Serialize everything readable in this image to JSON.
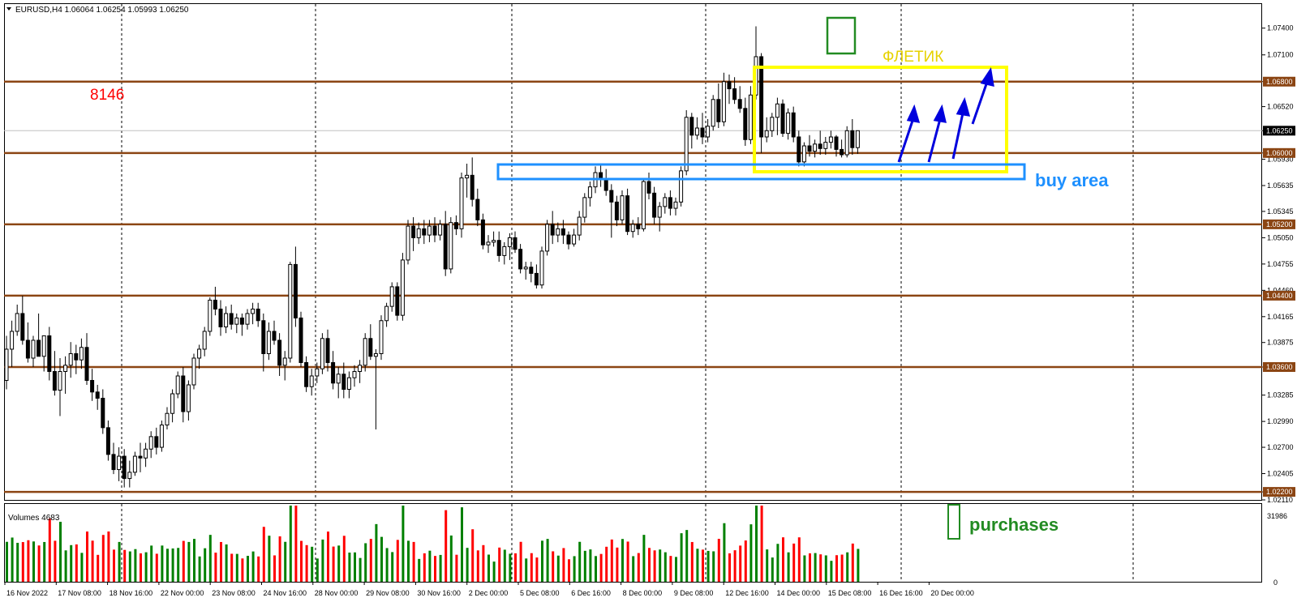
{
  "header": {
    "symbol_line": "EURUSD,H4  1.06064 1.06254 1.05993 1.06250",
    "volumes_label": "Volumes 4683"
  },
  "annotations": {
    "number_label": "8146",
    "flag_label": "ФЛЕТИК",
    "buy_area_label": "buy area",
    "purchases_label": "purchases"
  },
  "colors": {
    "up_candle": "#ffffff",
    "down_candle": "#000000",
    "level_line": "#8b4513",
    "flag_box": "#ffff00",
    "buy_box": "#1e90ff",
    "signal_box": "#228b22",
    "arrow": "#0000dd",
    "vol_up": "#008000",
    "vol_down": "#ff0000",
    "number_label": "#ff0000",
    "flag_label": "#e6d200",
    "buy_area_label": "#1e90ff",
    "purchases_label": "#228b22"
  },
  "chart_data": {
    "type": "candlestick",
    "timeframe": "H4",
    "ylim": [
      1.0211,
      1.0767
    ],
    "y_ticks": [
      "1.07400",
      "1.07100",
      "1.06800",
      "1.06520",
      "1.06250",
      "1.06000",
      "1.05930",
      "1.05635",
      "1.05345",
      "1.05050",
      "1.04755",
      "1.04460",
      "1.04165",
      "1.03875",
      "1.03600",
      "1.03285",
      "1.02990",
      "1.02700",
      "1.02405",
      "1.02200",
      "1.02110"
    ],
    "x_ticks": [
      "16 Nov 2022",
      "17 Nov 08:00",
      "18 Nov 16:00",
      "22 Nov 00:00",
      "23 Nov 08:00",
      "24 Nov 16:00",
      "28 Nov 00:00",
      "29 Nov 08:00",
      "30 Nov 16:00",
      "2 Dec 00:00",
      "5 Dec 08:00",
      "6 Dec 16:00",
      "8 Dec 00:00",
      "9 Dec 08:00",
      "12 Dec 16:00",
      "14 Dec 00:00",
      "15 Dec 08:00",
      "16 Dec 16:00",
      "20 Dec 00:00"
    ],
    "levels": [
      {
        "price": 1.068,
        "label": "1.06800"
      },
      {
        "price": 1.06,
        "label": "1.06000"
      },
      {
        "price": 1.052,
        "label": "1.05200"
      },
      {
        "price": 1.044,
        "label": "1.04400"
      },
      {
        "price": 1.036,
        "label": "1.03600"
      },
      {
        "price": 1.022,
        "label": "1.02200"
      }
    ],
    "current_price": {
      "price": 1.0625,
      "label": "1.06250"
    },
    "candles_ohlc": [
      [
        1.0345,
        1.0395,
        1.0335,
        1.038
      ],
      [
        1.038,
        1.0412,
        1.036,
        1.04
      ],
      [
        1.04,
        1.043,
        1.0395,
        1.042
      ],
      [
        1.042,
        1.044,
        1.0385,
        1.039
      ],
      [
        1.039,
        1.041,
        1.0365,
        1.037
      ],
      [
        1.037,
        1.0395,
        1.036,
        1.039
      ],
      [
        1.039,
        1.042,
        1.0375,
        1.0372
      ],
      [
        1.0372,
        1.0395,
        1.0355,
        1.0395
      ],
      [
        1.0395,
        1.0405,
        1.0345,
        1.0355
      ],
      [
        1.0355,
        1.0378,
        1.0328,
        1.0334
      ],
      [
        1.0334,
        1.037,
        1.0305,
        1.0355
      ],
      [
        1.0355,
        1.0372,
        1.033,
        1.0362
      ],
      [
        1.0362,
        1.0388,
        1.0348,
        1.0375
      ],
      [
        1.0375,
        1.0385,
        1.0352,
        1.0368
      ],
      [
        1.0368,
        1.0392,
        1.0358,
        1.0382
      ],
      [
        1.0382,
        1.0398,
        1.034,
        1.0345
      ],
      [
        1.0345,
        1.0358,
        1.0322,
        1.0332
      ],
      [
        1.0332,
        1.034,
        1.0312,
        1.0325
      ],
      [
        1.0325,
        1.0335,
        1.0285,
        1.0292
      ],
      [
        1.0292,
        1.03,
        1.0255,
        1.0262
      ],
      [
        1.0262,
        1.0275,
        1.024,
        1.0245
      ],
      [
        1.0245,
        1.027,
        1.0232,
        1.026
      ],
      [
        1.026,
        1.0268,
        1.0225,
        1.0235
      ],
      [
        1.0235,
        1.0255,
        1.0225,
        1.0242
      ],
      [
        1.0242,
        1.0265,
        1.0238,
        1.026
      ],
      [
        1.026,
        1.0275,
        1.0242,
        1.0258
      ],
      [
        1.0258,
        1.0275,
        1.0248,
        1.0268
      ],
      [
        1.0268,
        1.0288,
        1.0258,
        1.0282
      ],
      [
        1.0282,
        1.0292,
        1.0262,
        1.027
      ],
      [
        1.027,
        1.03,
        1.0265,
        1.0295
      ],
      [
        1.0295,
        1.0315,
        1.029,
        1.0308
      ],
      [
        1.0308,
        1.0335,
        1.0298,
        1.033
      ],
      [
        1.033,
        1.0355,
        1.0325,
        1.035
      ],
      [
        1.035,
        1.036,
        1.0298,
        1.031
      ],
      [
        1.031,
        1.0345,
        1.03,
        1.034
      ],
      [
        1.034,
        1.0375,
        1.0335,
        1.037
      ],
      [
        1.037,
        1.0385,
        1.0358,
        1.038
      ],
      [
        1.038,
        1.0405,
        1.0372,
        1.04
      ],
      [
        1.04,
        1.0438,
        1.0395,
        1.0435
      ],
      [
        1.0435,
        1.045,
        1.0418,
        1.0425
      ],
      [
        1.0425,
        1.0435,
        1.0395,
        1.0405
      ],
      [
        1.0405,
        1.0428,
        1.0398,
        1.042
      ],
      [
        1.042,
        1.043,
        1.0402,
        1.0408
      ],
      [
        1.0408,
        1.042,
        1.0398,
        1.0415
      ],
      [
        1.0415,
        1.042,
        1.0395,
        1.0408
      ],
      [
        1.0408,
        1.0425,
        1.0402,
        1.042
      ],
      [
        1.042,
        1.0432,
        1.0408,
        1.0425
      ],
      [
        1.0425,
        1.0432,
        1.0405,
        1.0412
      ],
      [
        1.0412,
        1.042,
        1.0355,
        1.0375
      ],
      [
        1.0375,
        1.041,
        1.0368,
        1.04
      ],
      [
        1.04,
        1.0412,
        1.0385,
        1.039
      ],
      [
        1.039,
        1.0398,
        1.035,
        1.0362
      ],
      [
        1.0362,
        1.0378,
        1.0345,
        1.037
      ],
      [
        1.037,
        1.0478,
        1.0365,
        1.0475
      ],
      [
        1.0475,
        1.0495,
        1.0405,
        1.0415
      ],
      [
        1.0415,
        1.0422,
        1.036,
        1.0365
      ],
      [
        1.0365,
        1.0372,
        1.0332,
        1.0338
      ],
      [
        1.0338,
        1.0358,
        1.0328,
        1.035
      ],
      [
        1.035,
        1.0365,
        1.0342,
        1.0358
      ],
      [
        1.0358,
        1.0398,
        1.0352,
        1.0392
      ],
      [
        1.0392,
        1.0402,
        1.0355,
        1.0365
      ],
      [
        1.0365,
        1.0378,
        1.0335,
        1.0342
      ],
      [
        1.0342,
        1.036,
        1.0325,
        1.0352
      ],
      [
        1.0352,
        1.0365,
        1.0325,
        1.0335
      ],
      [
        1.0335,
        1.0355,
        1.0325,
        1.0348
      ],
      [
        1.0348,
        1.0362,
        1.0338,
        1.0355
      ],
      [
        1.0355,
        1.0368,
        1.0342,
        1.0362
      ],
      [
        1.0362,
        1.0398,
        1.0355,
        1.0392
      ],
      [
        1.0392,
        1.0408,
        1.0368,
        1.0372
      ],
      [
        1.0372,
        1.038,
        1.029,
        1.0375
      ],
      [
        1.0375,
        1.0418,
        1.0368,
        1.0412
      ],
      [
        1.0412,
        1.0432,
        1.0405,
        1.0428
      ],
      [
        1.0428,
        1.0455,
        1.0422,
        1.045
      ],
      [
        1.045,
        1.0455,
        1.0412,
        1.0418
      ],
      [
        1.0418,
        1.0488,
        1.0412,
        1.048
      ],
      [
        1.048,
        1.0525,
        1.0475,
        1.0518
      ],
      [
        1.0518,
        1.0528,
        1.049,
        1.0505
      ],
      [
        1.0505,
        1.0522,
        1.0498,
        1.0515
      ],
      [
        1.0515,
        1.0525,
        1.0498,
        1.0508
      ],
      [
        1.0508,
        1.0525,
        1.05,
        1.0518
      ],
      [
        1.0518,
        1.0528,
        1.05,
        1.0508
      ],
      [
        1.0508,
        1.0525,
        1.0502,
        1.052
      ],
      [
        1.052,
        1.0535,
        1.0462,
        1.047
      ],
      [
        1.047,
        1.0528,
        1.0465,
        1.0522
      ],
      [
        1.0522,
        1.053,
        1.0508,
        1.0515
      ],
      [
        1.0515,
        1.0578,
        1.0505,
        1.0572
      ],
      [
        1.0572,
        1.0588,
        1.055,
        1.0575
      ],
      [
        1.0575,
        1.0595,
        1.054,
        1.0548
      ],
      [
        1.0548,
        1.056,
        1.0518,
        1.0525
      ],
      [
        1.0525,
        1.0532,
        1.0492,
        1.0497
      ],
      [
        1.0497,
        1.0508,
        1.0488,
        1.05
      ],
      [
        1.05,
        1.0512,
        1.0495,
        1.0502
      ],
      [
        1.0502,
        1.0512,
        1.0478,
        1.0485
      ],
      [
        1.0485,
        1.05,
        1.0475,
        1.0495
      ],
      [
        1.0495,
        1.051,
        1.048,
        1.0505
      ],
      [
        1.0505,
        1.0512,
        1.0488,
        1.0492
      ],
      [
        1.0492,
        1.0498,
        1.0465,
        1.047
      ],
      [
        1.047,
        1.0478,
        1.0458,
        1.0472
      ],
      [
        1.0472,
        1.0478,
        1.0455,
        1.0465
      ],
      [
        1.0465,
        1.0475,
        1.0448,
        1.0452
      ],
      [
        1.0452,
        1.0495,
        1.0448,
        1.049
      ],
      [
        1.049,
        1.0525,
        1.0485,
        1.052
      ],
      [
        1.052,
        1.0535,
        1.0498,
        1.0508
      ],
      [
        1.0508,
        1.0522,
        1.05,
        1.0515
      ],
      [
        1.0515,
        1.0525,
        1.0498,
        1.0508
      ],
      [
        1.0508,
        1.0512,
        1.0492,
        1.0498
      ],
      [
        1.0498,
        1.0515,
        1.0495,
        1.0508
      ],
      [
        1.0508,
        1.0535,
        1.0502,
        1.0528
      ],
      [
        1.0528,
        1.0555,
        1.0522,
        1.055
      ],
      [
        1.055,
        1.0568,
        1.054,
        1.0562
      ],
      [
        1.0562,
        1.0585,
        1.0555,
        1.0578
      ],
      [
        1.0578,
        1.0588,
        1.0562,
        1.057
      ],
      [
        1.057,
        1.0582,
        1.0552,
        1.0558
      ],
      [
        1.0558,
        1.0565,
        1.0505,
        1.0545
      ],
      [
        1.0545,
        1.0552,
        1.0518,
        1.0525
      ],
      [
        1.0525,
        1.0558,
        1.052,
        1.0552
      ],
      [
        1.0552,
        1.056,
        1.0508,
        1.0512
      ],
      [
        1.0512,
        1.0525,
        1.0505,
        1.052
      ],
      [
        1.052,
        1.0528,
        1.0508,
        1.0515
      ],
      [
        1.0515,
        1.0572,
        1.0512,
        1.0568
      ],
      [
        1.0568,
        1.0578,
        1.0548,
        1.0555
      ],
      [
        1.0555,
        1.0562,
        1.052,
        1.0528
      ],
      [
        1.0528,
        1.0545,
        1.0512,
        1.054
      ],
      [
        1.054,
        1.0555,
        1.0532,
        1.055
      ],
      [
        1.055,
        1.0558,
        1.053,
        1.0538
      ],
      [
        1.0538,
        1.055,
        1.053,
        1.0545
      ],
      [
        1.0545,
        1.0585,
        1.054,
        1.058
      ],
      [
        1.058,
        1.0648,
        1.0575,
        1.064
      ],
      [
        1.064,
        1.0645,
        1.0605,
        1.062
      ],
      [
        1.062,
        1.064,
        1.0615,
        1.0628
      ],
      [
        1.0628,
        1.0645,
        1.061,
        1.0618
      ],
      [
        1.0618,
        1.0638,
        1.0612,
        1.063
      ],
      [
        1.063,
        1.0665,
        1.0625,
        1.066
      ],
      [
        1.066,
        1.0678,
        1.0628,
        1.0635
      ],
      [
        1.0635,
        1.069,
        1.063,
        1.068
      ],
      [
        1.068,
        1.0688,
        1.0655,
        1.0672
      ],
      [
        1.0672,
        1.0685,
        1.0655,
        1.066
      ],
      [
        1.066,
        1.0675,
        1.0645,
        1.065
      ],
      [
        1.065,
        1.0662,
        1.0608,
        1.0615
      ],
      [
        1.0615,
        1.0675,
        1.061,
        1.0665
      ],
      [
        1.0665,
        1.0742,
        1.066,
        1.0708
      ],
      [
        1.0708,
        1.0712,
        1.06,
        1.0618
      ],
      [
        1.0618,
        1.064,
        1.0612,
        1.0625
      ],
      [
        1.0625,
        1.0645,
        1.0618,
        1.064
      ],
      [
        1.064,
        1.0662,
        1.062,
        1.0655
      ],
      [
        1.0655,
        1.066,
        1.0618,
        1.0622
      ],
      [
        1.0622,
        1.065,
        1.0615,
        1.0645
      ],
      [
        1.0645,
        1.0652,
        1.0612,
        1.0618
      ],
      [
        1.0618,
        1.0625,
        1.0585,
        1.059
      ],
      [
        1.059,
        1.0612,
        1.0585,
        1.0608
      ],
      [
        1.0608,
        1.062,
        1.0596,
        1.0602
      ],
      [
        1.0602,
        1.0615,
        1.0595,
        1.061
      ],
      [
        1.061,
        1.0625,
        1.0598,
        1.0605
      ],
      [
        1.0605,
        1.0618,
        1.0598,
        1.0612
      ],
      [
        1.0612,
        1.0625,
        1.0605,
        1.0618
      ],
      [
        1.0618,
        1.062,
        1.0596,
        1.0604
      ],
      [
        1.0604,
        1.0615,
        1.0595,
        1.0598
      ],
      [
        1.0598,
        1.063,
        1.0595,
        1.0625
      ],
      [
        1.0625,
        1.0638,
        1.0598,
        1.0606
      ],
      [
        1.0606,
        1.0625,
        1.0599,
        1.0625
      ]
    ],
    "volume_ylim": [
      0,
      31986
    ],
    "volume_ticks": [
      "31986",
      "0"
    ]
  }
}
